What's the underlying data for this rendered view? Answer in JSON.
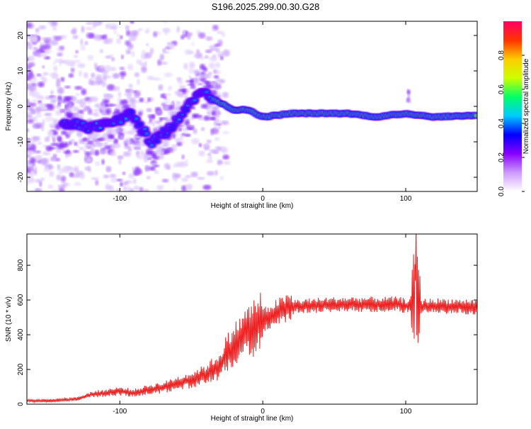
{
  "title": "S196.2025.299.00.30.G28",
  "chart_data": [
    {
      "type": "heatmap",
      "xlabel": "Height of straight line (km)",
      "ylabel": "Frequency (Hz)",
      "xlim": [
        -165,
        150
      ],
      "ylim": [
        -24,
        24
      ],
      "xticks": [
        -100,
        0,
        100
      ],
      "xtick_labels": [
        "-100",
        "0",
        "100"
      ],
      "yticks": [
        -20,
        -10,
        0,
        10,
        20
      ],
      "ytick_labels": [
        "-20",
        "-10",
        "0",
        "10",
        "20"
      ],
      "colorbar": {
        "label": "Normalized spectral amplitude",
        "range": [
          0,
          1
        ],
        "ticks": [
          0,
          0.2,
          0.4,
          0.6,
          0.8
        ],
        "tick_labels": [
          "0.0",
          "0.2",
          "0.4",
          "0.6",
          "0.8"
        ],
        "colors": [
          "#ffffff",
          "#cc99ff",
          "#8800ff",
          "#0000ff",
          "#00ccff",
          "#00ff66",
          "#ccff00",
          "#ffcc00",
          "#ff3300",
          "#ff0066"
        ]
      },
      "ridge": [
        {
          "x": -135,
          "y": -5
        },
        {
          "x": -120,
          "y": -6
        },
        {
          "x": -110,
          "y": -5
        },
        {
          "x": -100,
          "y": -4
        },
        {
          "x": -92,
          "y": -2
        },
        {
          "x": -85,
          "y": -6
        },
        {
          "x": -78,
          "y": -10
        },
        {
          "x": -70,
          "y": -8
        },
        {
          "x": -60,
          "y": -4
        },
        {
          "x": -50,
          "y": 1
        },
        {
          "x": -42,
          "y": 5
        },
        {
          "x": -38,
          "y": 3
        },
        {
          "x": -30,
          "y": 1
        },
        {
          "x": -20,
          "y": -1
        },
        {
          "x": -10,
          "y": -1
        },
        {
          "x": 0,
          "y": -3
        },
        {
          "x": 20,
          "y": -2
        },
        {
          "x": 40,
          "y": -2
        },
        {
          "x": 60,
          "y": -2
        },
        {
          "x": 80,
          "y": -3
        },
        {
          "x": 100,
          "y": -2
        },
        {
          "x": 120,
          "y": -3
        },
        {
          "x": 150,
          "y": -2.5
        }
      ]
    },
    {
      "type": "line",
      "xlabel": "Height of straight line (km)",
      "ylabel": "SNR (10 * v/v)",
      "xlim": [
        -165,
        150
      ],
      "ylim": [
        0,
        980
      ],
      "xticks": [
        -100,
        0,
        100
      ],
      "xtick_labels": [
        "-100",
        "0",
        "100"
      ],
      "yticks": [
        0,
        200,
        400,
        600,
        800
      ],
      "ytick_labels": [
        "0",
        "200",
        "400",
        "600",
        "800"
      ],
      "series": [
        {
          "name": "SNR",
          "color": "#ee2222",
          "x": [
            -165,
            -150,
            -140,
            -130,
            -120,
            -110,
            -100,
            -90,
            -80,
            -70,
            -60,
            -50,
            -40,
            -30,
            -25,
            -20,
            -15,
            -10,
            0,
            10,
            20,
            30,
            40,
            60,
            80,
            95,
            100,
            104,
            106,
            107,
            108,
            110,
            115,
            130,
            150
          ],
          "y": [
            20,
            20,
            25,
            30,
            55,
            65,
            75,
            65,
            85,
            95,
            120,
            140,
            170,
            220,
            300,
            340,
            380,
            420,
            480,
            530,
            560,
            565,
            570,
            575,
            575,
            575,
            565,
            580,
            560,
            900,
            560,
            560,
            565,
            565,
            560
          ]
        }
      ]
    }
  ]
}
